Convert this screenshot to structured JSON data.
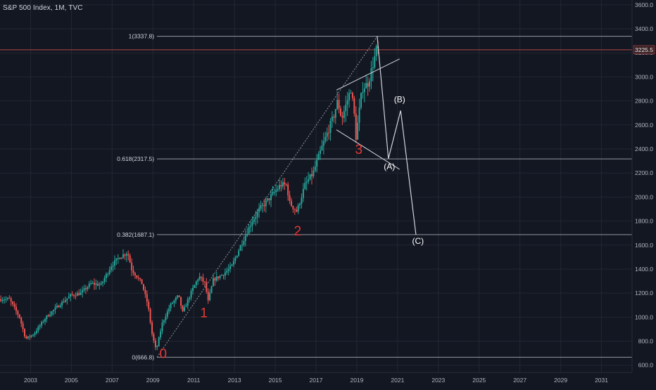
{
  "header": {
    "title": "S&P 500 Index, 1M, TVC"
  },
  "colors": {
    "background": "#131722",
    "grid": "#232733",
    "text": "#b2b5be",
    "up": "#26a69a",
    "down": "#ef5350",
    "fib_line": "#9598a1",
    "price_line": "#b24a4a",
    "wave_count": "#e53935",
    "path": "#d1d4dc"
  },
  "chart_data": {
    "type": "candlestick",
    "title": "S&P 500 Index, 1M, TVC",
    "x_ticks": [
      "2003",
      "2005",
      "2007",
      "2009",
      "2011",
      "2013",
      "2015",
      "2017",
      "2019",
      "2021",
      "2023",
      "2025",
      "2027",
      "2029",
      "2031"
    ],
    "y_ticks": [
      "600.0",
      "800.0",
      "1000.0",
      "1200.0",
      "1400.0",
      "1600.0",
      "1800.0",
      "2000.0",
      "2200.0",
      "2400.0",
      "2600.0",
      "2800.0",
      "3000.0",
      "3200.0",
      "3400.0",
      "3600.0"
    ],
    "xlim": [
      2001.5,
      2032.5
    ],
    "ylim": [
      540,
      3640
    ],
    "last_price": {
      "label": "3225.5",
      "value": 3225.5
    },
    "fib_levels": [
      {
        "label": "1(3337.8)",
        "value": 3337.8
      },
      {
        "label": "0.618(2317.5)",
        "value": 2317.5
      },
      {
        "label": "0.382(1687.1)",
        "value": 1687.1
      },
      {
        "label": "0(666.8)",
        "value": 666.8
      }
    ],
    "fib_x_range": [
      2009.2,
      2032.5
    ],
    "price_anchors": [
      [
        2002.0,
        1150
      ],
      [
        2002.5,
        1000
      ],
      [
        2002.8,
        820
      ],
      [
        2003.2,
        860
      ],
      [
        2003.8,
        1000
      ],
      [
        2004.5,
        1110
      ],
      [
        2005.0,
        1180
      ],
      [
        2005.5,
        1200
      ],
      [
        2006.0,
        1280
      ],
      [
        2006.5,
        1270
      ],
      [
        2007.0,
        1430
      ],
      [
        2007.4,
        1500
      ],
      [
        2007.8,
        1540
      ],
      [
        2008.0,
        1400
      ],
      [
        2008.5,
        1280
      ],
      [
        2008.8,
        1100
      ],
      [
        2009.0,
        860
      ],
      [
        2009.2,
        720
      ],
      [
        2009.5,
        950
      ],
      [
        2009.9,
        1100
      ],
      [
        2010.3,
        1180
      ],
      [
        2010.5,
        1040
      ],
      [
        2010.9,
        1200
      ],
      [
        2011.3,
        1340
      ],
      [
        2011.6,
        1280
      ],
      [
        2011.75,
        1130
      ],
      [
        2012.0,
        1310
      ],
      [
        2012.5,
        1360
      ],
      [
        2012.9,
        1420
      ],
      [
        2013.3,
        1580
      ],
      [
        2013.9,
        1800
      ],
      [
        2014.3,
        1900
      ],
      [
        2014.8,
        2000
      ],
      [
        2015.3,
        2100
      ],
      [
        2015.6,
        2100
      ],
      [
        2015.75,
        1950
      ],
      [
        2016.1,
        1880
      ],
      [
        2016.5,
        2100
      ],
      [
        2016.9,
        2200
      ],
      [
        2017.3,
        2400
      ],
      [
        2017.9,
        2670
      ],
      [
        2018.1,
        2800
      ],
      [
        2018.3,
        2650
      ],
      [
        2018.75,
        2900
      ],
      [
        2018.9,
        2720
      ],
      [
        2019.0,
        2500
      ],
      [
        2019.3,
        2900
      ],
      [
        2019.6,
        2950
      ],
      [
        2019.9,
        3150
      ],
      [
        2020.0,
        3225
      ]
    ],
    "wave_counts": [
      {
        "label": "0",
        "x": 2009.5,
        "y": 660
      },
      {
        "label": "1",
        "x": 2011.5,
        "y": 1000
      },
      {
        "label": "2",
        "x": 2016.1,
        "y": 1680
      },
      {
        "label": "3",
        "x": 2019.1,
        "y": 2360
      }
    ],
    "projection_labels": [
      {
        "label": "(A)",
        "x": 2020.6,
        "y": 2230
      },
      {
        "label": "(B)",
        "x": 2021.1,
        "y": 2790
      },
      {
        "label": "(C)",
        "x": 2022.0,
        "y": 1610
      }
    ],
    "projection_path": [
      [
        2020.0,
        3337.8
      ],
      [
        2020.55,
        2320
      ],
      [
        2021.15,
        2720
      ],
      [
        2021.9,
        1687
      ]
    ],
    "trendline_dashed": [
      [
        2009.2,
        666.8
      ],
      [
        2020.0,
        3337.8
      ]
    ],
    "triangle_upper": [
      [
        2018.0,
        2890
      ],
      [
        2021.1,
        3150
      ]
    ],
    "triangle_lower": [
      [
        2018.0,
        2560
      ],
      [
        2021.1,
        2230
      ]
    ]
  }
}
